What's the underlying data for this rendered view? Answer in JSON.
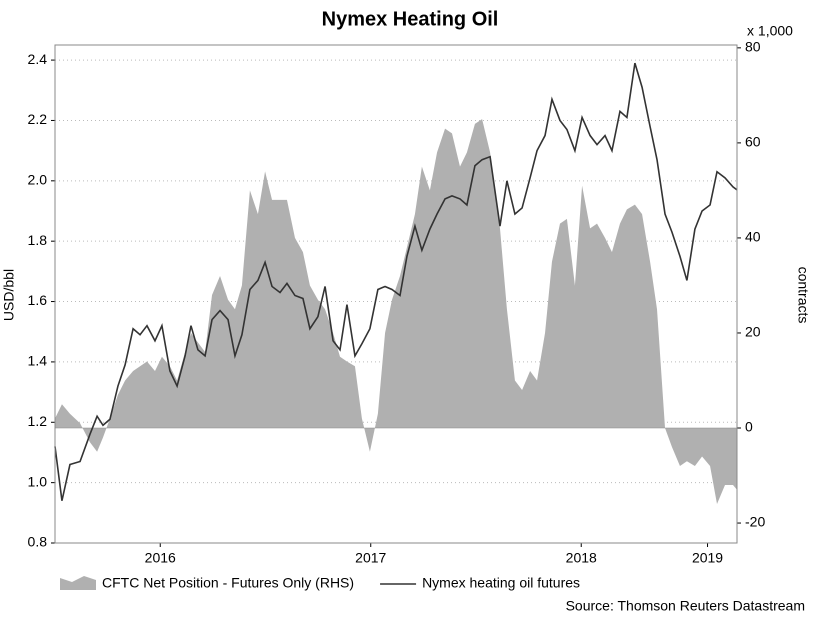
{
  "chart_data": {
    "type": "line",
    "title": "Nymex Heating Oil",
    "y_label": "USD/bbl",
    "y2_label": "contracts",
    "y2_unit": "x 1,000",
    "source": "Source: Thomson Reuters Datastream",
    "xlim": [
      2016.0,
      2019.24
    ],
    "xticks": [
      {
        "value": 2016.5,
        "label": "2016"
      },
      {
        "value": 2017.5,
        "label": "2017"
      },
      {
        "value": 2018.5,
        "label": "2018"
      },
      {
        "value": 2019.1,
        "label": "2019"
      }
    ],
    "ylim": [
      0.8,
      2.45
    ],
    "yticks": [
      0.8,
      {
        "value": 1.0,
        "label": "1.0"
      },
      1.2,
      1.4,
      1.6,
      1.8,
      {
        "value": 2.0,
        "label": "2.0"
      },
      2.2,
      2.4
    ],
    "y2lim": [
      -24.2,
      80.6
    ],
    "y2ticks": [
      -20,
      0,
      20,
      40,
      60,
      80
    ],
    "grid": true,
    "x": [
      2016.0,
      2016.033,
      2016.071,
      2016.119,
      2016.166,
      2016.2,
      2016.228,
      2016.261,
      2016.299,
      2016.333,
      2016.371,
      2016.404,
      2016.437,
      2016.475,
      2016.508,
      2016.546,
      2016.58,
      2016.618,
      2016.646,
      2016.679,
      2016.713,
      2016.746,
      2016.784,
      2016.822,
      2016.855,
      2016.888,
      2016.926,
      2016.964,
      2016.998,
      2017.031,
      2017.069,
      2017.102,
      2017.14,
      2017.178,
      2017.211,
      2017.249,
      2017.283,
      2017.321,
      2017.354,
      2017.387,
      2017.425,
      2017.458,
      2017.496,
      2017.534,
      2017.568,
      2017.601,
      2017.639,
      2017.672,
      2017.71,
      2017.743,
      2017.781,
      2017.815,
      2017.853,
      2017.886,
      2017.924,
      2017.957,
      2017.995,
      2018.029,
      2018.067,
      2018.114,
      2018.147,
      2018.185,
      2018.219,
      2018.257,
      2018.29,
      2018.328,
      2018.361,
      2018.399,
      2018.432,
      2018.47,
      2018.504,
      2018.542,
      2018.575,
      2018.613,
      2018.646,
      2018.684,
      2018.717,
      2018.755,
      2018.789,
      2018.827,
      2018.86,
      2018.898,
      2018.931,
      2018.969,
      2019.002,
      2019.04,
      2019.074,
      2019.112,
      2019.145,
      2019.183,
      2019.221,
      2019.24
    ],
    "series": [
      {
        "name": "CFTC Net Position - Futures Only (RHS)",
        "type": "area",
        "axis": "y2",
        "color": "#b0b0b0",
        "values": [
          2,
          5,
          3,
          1,
          -3,
          -5,
          -2,
          2,
          7,
          10,
          12,
          13,
          14,
          12,
          15,
          13,
          10,
          16,
          20,
          18,
          16,
          28,
          32,
          27,
          25,
          30,
          50,
          45,
          54,
          48,
          48,
          48,
          40,
          37,
          30,
          27,
          25,
          20,
          15,
          14,
          13,
          2,
          -5,
          3,
          20,
          27,
          32,
          38,
          45,
          55,
          50,
          58,
          63,
          62,
          55,
          58,
          64,
          65,
          58,
          42,
          25,
          10,
          8,
          12,
          10,
          20,
          35,
          43,
          44,
          30,
          51,
          42,
          43,
          40,
          37,
          43,
          46,
          47,
          45,
          35,
          25,
          0,
          -4,
          -8,
          -7,
          -8,
          -6,
          -8,
          -16,
          -12,
          -12,
          -13
        ]
      },
      {
        "name": "Nymex heating oil futures",
        "type": "line",
        "color": "#333333",
        "values": [
          1.12,
          0.94,
          1.06,
          1.07,
          1.16,
          1.22,
          1.19,
          1.21,
          1.32,
          1.39,
          1.51,
          1.49,
          1.52,
          1.47,
          1.52,
          1.37,
          1.32,
          1.42,
          1.52,
          1.44,
          1.42,
          1.54,
          1.57,
          1.54,
          1.42,
          1.49,
          1.64,
          1.67,
          1.73,
          1.65,
          1.63,
          1.66,
          1.62,
          1.61,
          1.51,
          1.55,
          1.65,
          1.47,
          1.44,
          1.59,
          1.42,
          1.46,
          1.51,
          1.64,
          1.65,
          1.64,
          1.62,
          1.75,
          1.85,
          1.77,
          1.84,
          1.89,
          1.94,
          1.95,
          1.94,
          1.92,
          2.05,
          2.07,
          2.08,
          1.85,
          2.0,
          1.89,
          1.91,
          2.01,
          2.1,
          2.15,
          2.27,
          2.2,
          2.17,
          2.1,
          2.21,
          2.15,
          2.12,
          2.15,
          2.1,
          2.23,
          2.21,
          2.39,
          2.31,
          2.18,
          2.07,
          1.89,
          1.83,
          1.75,
          1.67,
          1.84,
          1.9,
          1.92,
          2.03,
          2.01,
          1.98,
          1.97
        ]
      }
    ]
  }
}
